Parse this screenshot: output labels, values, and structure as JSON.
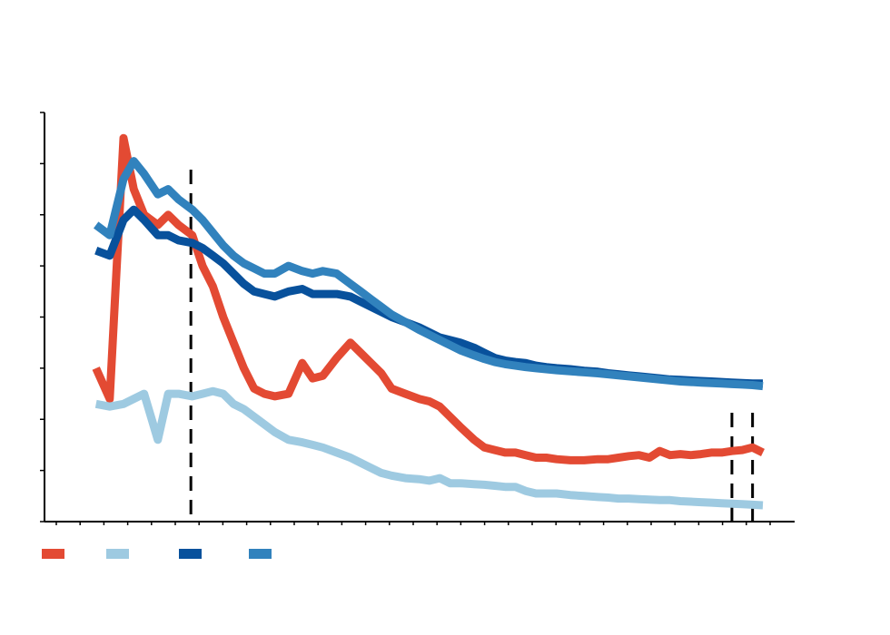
{
  "chart_data": {
    "type": "line",
    "title": "",
    "xlabel": "",
    "ylabel": "",
    "xlim": [
      0,
      100
    ],
    "ylim": [
      0,
      8
    ],
    "y_ticks": [
      0,
      1,
      2,
      3,
      4,
      5,
      6,
      7,
      8
    ],
    "x_tick_count": 31,
    "grid": false,
    "legend_position": "bottom-left",
    "vertical_markers": [
      16.8,
      95.5,
      98.5
    ],
    "x": [
      3,
      5,
      7,
      8.5,
      10,
      12,
      13.5,
      15,
      17,
      18.5,
      20,
      21.5,
      23,
      24.5,
      26,
      27.5,
      29,
      31,
      33,
      34.5,
      36,
      38,
      40,
      41.5,
      43,
      44.5,
      46,
      48,
      50,
      51.5,
      53,
      54.5,
      56,
      58,
      59.5,
      61,
      62.5,
      64,
      65.5,
      67,
      68.5,
      70,
      72,
      74,
      76,
      77.5,
      79,
      80.5,
      82,
      83.5,
      85,
      86.5,
      88,
      89.5,
      91,
      92.5,
      94,
      95.5,
      97,
      98.5,
      100
    ],
    "series": [
      {
        "color": "#e34a33",
        "values": [
          3.0,
          2.4,
          7.5,
          6.5,
          6.0,
          5.8,
          6.0,
          5.8,
          5.6,
          5.0,
          4.6,
          4.0,
          3.5,
          3.0,
          2.6,
          2.5,
          2.45,
          2.5,
          3.1,
          2.8,
          2.85,
          3.2,
          3.5,
          3.3,
          3.1,
          2.9,
          2.6,
          2.5,
          2.4,
          2.35,
          2.25,
          2.05,
          1.85,
          1.6,
          1.45,
          1.4,
          1.35,
          1.35,
          1.3,
          1.25,
          1.25,
          1.22,
          1.2,
          1.2,
          1.22,
          1.22,
          1.25,
          1.28,
          1.3,
          1.25,
          1.38,
          1.3,
          1.32,
          1.3,
          1.32,
          1.35,
          1.35,
          1.38,
          1.4,
          1.45,
          1.35
        ]
      },
      {
        "color": "#9ecae1",
        "values": [
          2.3,
          2.25,
          2.3,
          2.4,
          2.5,
          1.6,
          2.5,
          2.5,
          2.45,
          2.5,
          2.55,
          2.5,
          2.3,
          2.2,
          2.05,
          1.9,
          1.75,
          1.6,
          1.55,
          1.5,
          1.45,
          1.35,
          1.25,
          1.15,
          1.05,
          0.95,
          0.9,
          0.85,
          0.83,
          0.8,
          0.85,
          0.75,
          0.75,
          0.73,
          0.72,
          0.7,
          0.68,
          0.68,
          0.6,
          0.55,
          0.55,
          0.55,
          0.52,
          0.5,
          0.48,
          0.47,
          0.45,
          0.45,
          0.44,
          0.43,
          0.42,
          0.42,
          0.4,
          0.39,
          0.38,
          0.37,
          0.36,
          0.35,
          0.34,
          0.33,
          0.32
        ]
      },
      {
        "color": "#08519c",
        "values": [
          5.3,
          5.2,
          5.9,
          6.1,
          5.9,
          5.6,
          5.6,
          5.5,
          5.45,
          5.35,
          5.2,
          5.05,
          4.85,
          4.65,
          4.5,
          4.45,
          4.4,
          4.5,
          4.55,
          4.45,
          4.45,
          4.45,
          4.4,
          4.3,
          4.2,
          4.1,
          4.0,
          3.9,
          3.8,
          3.7,
          3.6,
          3.55,
          3.5,
          3.4,
          3.3,
          3.2,
          3.15,
          3.12,
          3.1,
          3.05,
          3.02,
          3.0,
          2.98,
          2.95,
          2.93,
          2.9,
          2.88,
          2.86,
          2.84,
          2.82,
          2.8,
          2.78,
          2.77,
          2.76,
          2.75,
          2.74,
          2.73,
          2.72,
          2.71,
          2.7,
          2.7
        ]
      },
      {
        "color": "#3182bd",
        "values": [
          5.8,
          5.6,
          6.7,
          7.05,
          6.8,
          6.4,
          6.5,
          6.3,
          6.1,
          5.9,
          5.65,
          5.4,
          5.2,
          5.05,
          4.95,
          4.85,
          4.85,
          5.0,
          4.9,
          4.85,
          4.9,
          4.85,
          4.65,
          4.5,
          4.35,
          4.2,
          4.05,
          3.9,
          3.75,
          3.65,
          3.55,
          3.45,
          3.35,
          3.25,
          3.18,
          3.12,
          3.08,
          3.05,
          3.02,
          3.0,
          2.98,
          2.96,
          2.94,
          2.92,
          2.9,
          2.88,
          2.86,
          2.84,
          2.82,
          2.8,
          2.78,
          2.76,
          2.74,
          2.73,
          2.72,
          2.71,
          2.7,
          2.69,
          2.68,
          2.67,
          2.65
        ]
      }
    ]
  }
}
